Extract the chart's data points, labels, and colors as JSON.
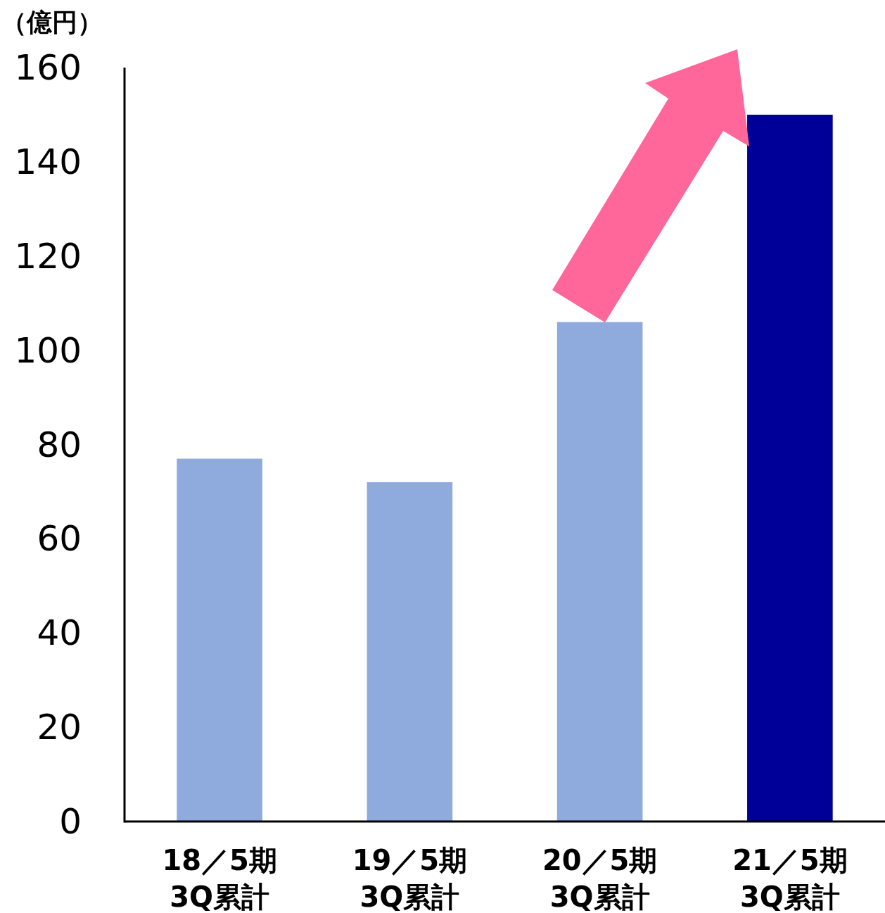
{
  "chart_data": {
    "type": "bar",
    "ylabel": "（億円）",
    "categories": [
      "18／5期 3Q累計",
      "19／5期 3Q累計",
      "20／5期 3Q累計",
      "21／5期 3Q累計"
    ],
    "values": [
      77,
      72,
      106,
      150
    ],
    "colors": [
      "#8faadc",
      "#8faadc",
      "#8faadc",
      "#000099"
    ],
    "ylim": [
      0,
      160
    ],
    "yticks": [
      0,
      20,
      40,
      60,
      80,
      100,
      120,
      140,
      160
    ]
  }
}
